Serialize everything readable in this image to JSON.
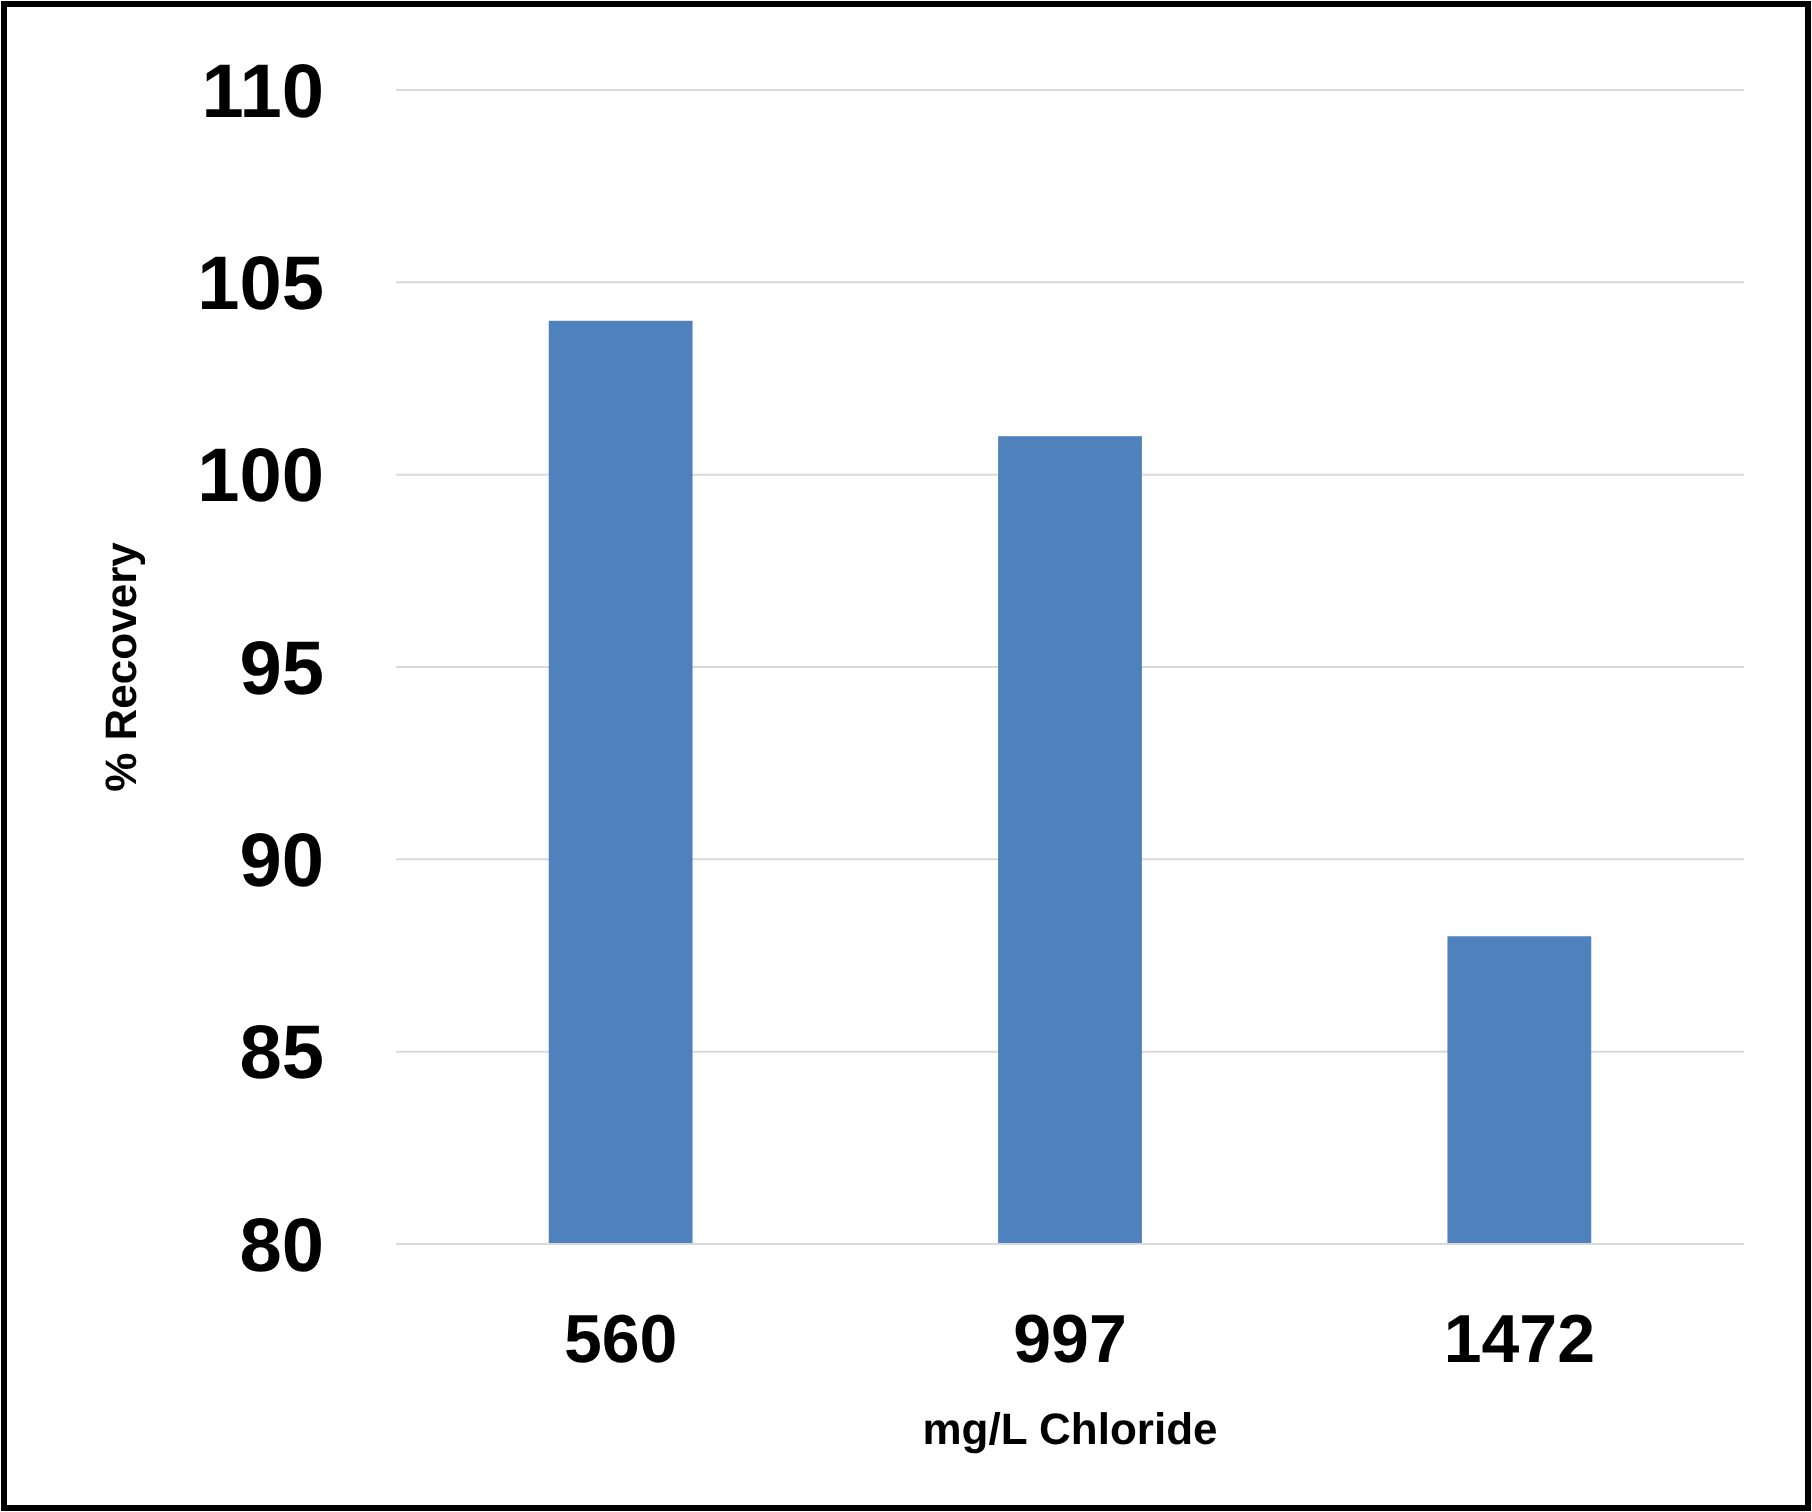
{
  "chart_data": {
    "type": "bar",
    "xlabel": "mg/L Chloride",
    "ylabel": "% Recovery",
    "categories": [
      "560",
      "997",
      "1472"
    ],
    "values": [
      104,
      101,
      88
    ],
    "color": "#4f81bd",
    "ylim": [
      80,
      110
    ],
    "yticks": [
      80,
      85,
      90,
      95,
      100,
      105,
      110
    ],
    "grid": "y"
  }
}
